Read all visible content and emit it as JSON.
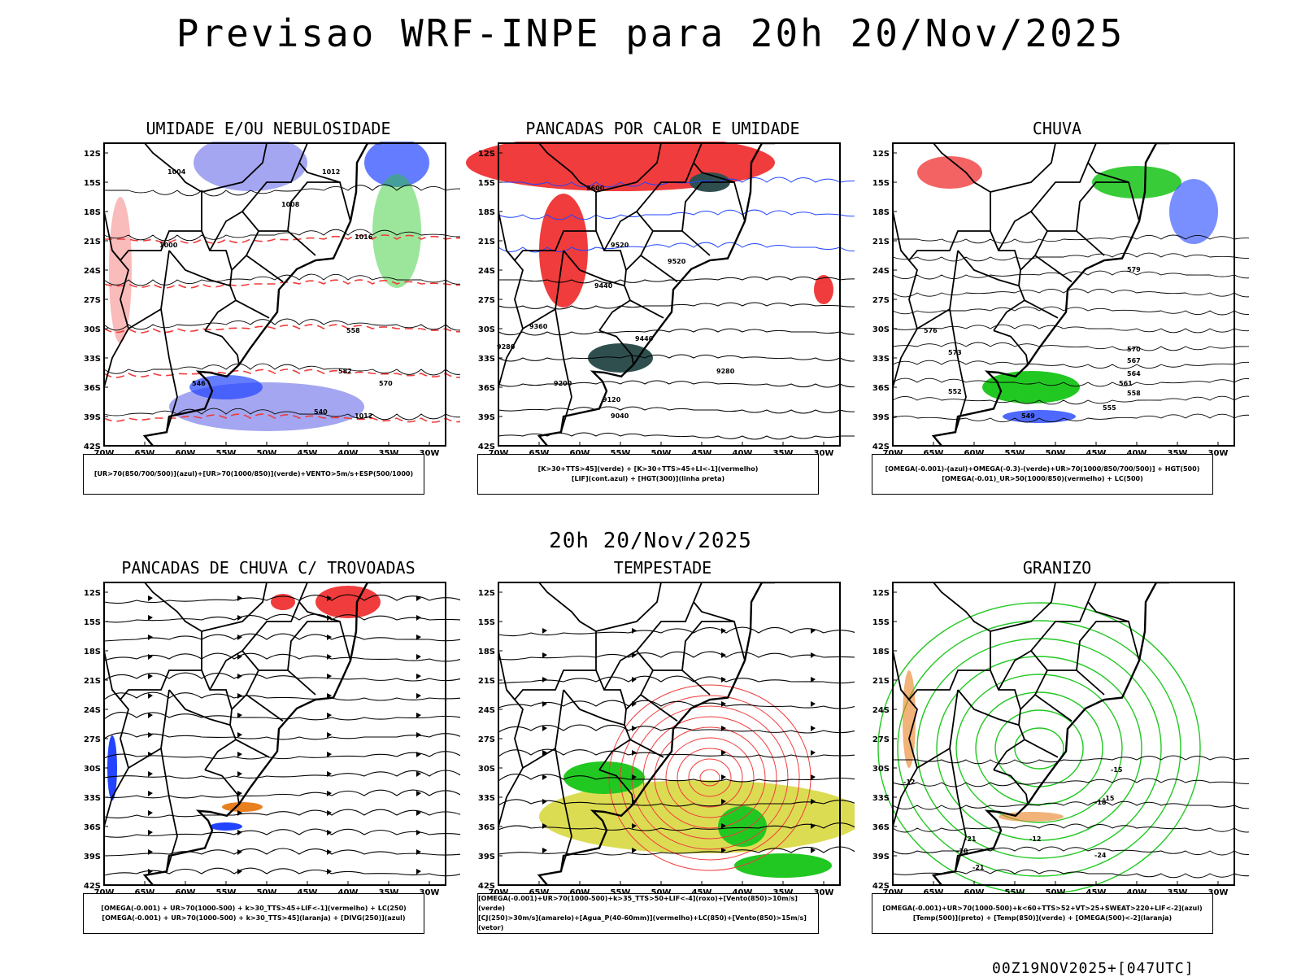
{
  "header": {
    "title": "Previsao WRF-INPE  para 20h 20/Nov/2025"
  },
  "mid": {
    "label": "20h 20/Nov/2025"
  },
  "footer": {
    "stamp": "00Z19NOV2025+[047UTC]"
  },
  "colors": {
    "red": "#f03c3c",
    "green": "#22c822",
    "blue": "#2244ff",
    "lavender": "#9a9cf0",
    "darkteal": "#2f4f4f",
    "yellow": "#d8d840",
    "orange": "#e88020",
    "purple": "#a020f0"
  },
  "axes": {
    "lat_labels": [
      "12S",
      "15S",
      "18S",
      "21S",
      "24S",
      "27S",
      "30S",
      "33S",
      "36S",
      "39S",
      "42S"
    ],
    "lon_labels": [
      "70W",
      "65W",
      "60W",
      "55W",
      "50W",
      "45W",
      "40W",
      "35W",
      "30W"
    ]
  },
  "panels": [
    {
      "title": "UMIDADE E/OU NEBULOSIDADE",
      "legend": [
        "[UR>70(850/700/500)](azul)+[UR>70(1000/850)](verde)+VENTO>5m/s+ESP(500/1000)"
      ],
      "contour_labels": [
        "1004",
        "1012",
        "1008",
        "1016",
        "1000",
        "558",
        "582",
        "570",
        "546",
        "540",
        "1012"
      ]
    },
    {
      "title": "PANCADAS POR CALOR E UMIDADE",
      "legend": [
        "[K>30+TTS>45](verde) + [K>30+TTS>45+LI<-1](vermelho)",
        "[LIF](cont.azul) + [HGT(300)](linha preta)"
      ],
      "contour_labels": [
        "9600",
        "9520",
        "9440",
        "9360",
        "9280",
        "9200",
        "9120",
        "9040",
        "9520",
        "9280",
        "9440"
      ]
    },
    {
      "title": "CHUVA",
      "legend": [
        "[OMEGA(-0.001)-(azul)+OMEGA(-0.3)-(verde)+UR>70(1000/850/700/500)] + HGT(500)",
        "[OMEGA(-0.01)_UR>50(1000/850)(vermelho) + LC(500)"
      ],
      "contour_labels": [
        "579",
        "576",
        "573",
        "570",
        "567",
        "564",
        "561",
        "558",
        "555",
        "552",
        "549"
      ]
    },
    {
      "title": "PANCADAS DE CHUVA C/ TROVOADAS",
      "legend": [
        "[OMEGA(-0.001) + UR>70(1000-500) + k>30_TTS>45+LIF<-1](vermelho) + LC(250)",
        "[OMEGA(-0.001) + UR>70(1000-500) + k>30_TTS>45](laranja) + [DIVG(250)](azul)"
      ],
      "contour_labels": []
    },
    {
      "title": "TEMPESTADE",
      "legend": [
        "[OMEGA(-0.001)+UR>70(1000-500)+k>35_TTS>50+LIF<-4](roxo)+[Vento(850)>10m/s](verde)",
        "[CJ(250)>30m/s](amarelo)+[Agua_P(40-60mm)](vermelho)+LC(850)+[Vento(850)>15m/s](vetor)"
      ],
      "contour_labels": []
    },
    {
      "title": "GRANIZO",
      "legend": [
        "[OMEGA(-0.001)+UR>70(1000-500)+k<60+TTS>52+VT>25+SWEAT>220+LIF<-2](azul)",
        "[Temp(500)](preto) + [Temp(850)](verde) + [OMEGA(500)<-2](laranja)"
      ],
      "contour_labels": [
        "-12",
        "-15",
        "-18",
        "-21",
        "-24",
        "-12",
        "-15",
        "-18",
        "-21"
      ]
    }
  ]
}
